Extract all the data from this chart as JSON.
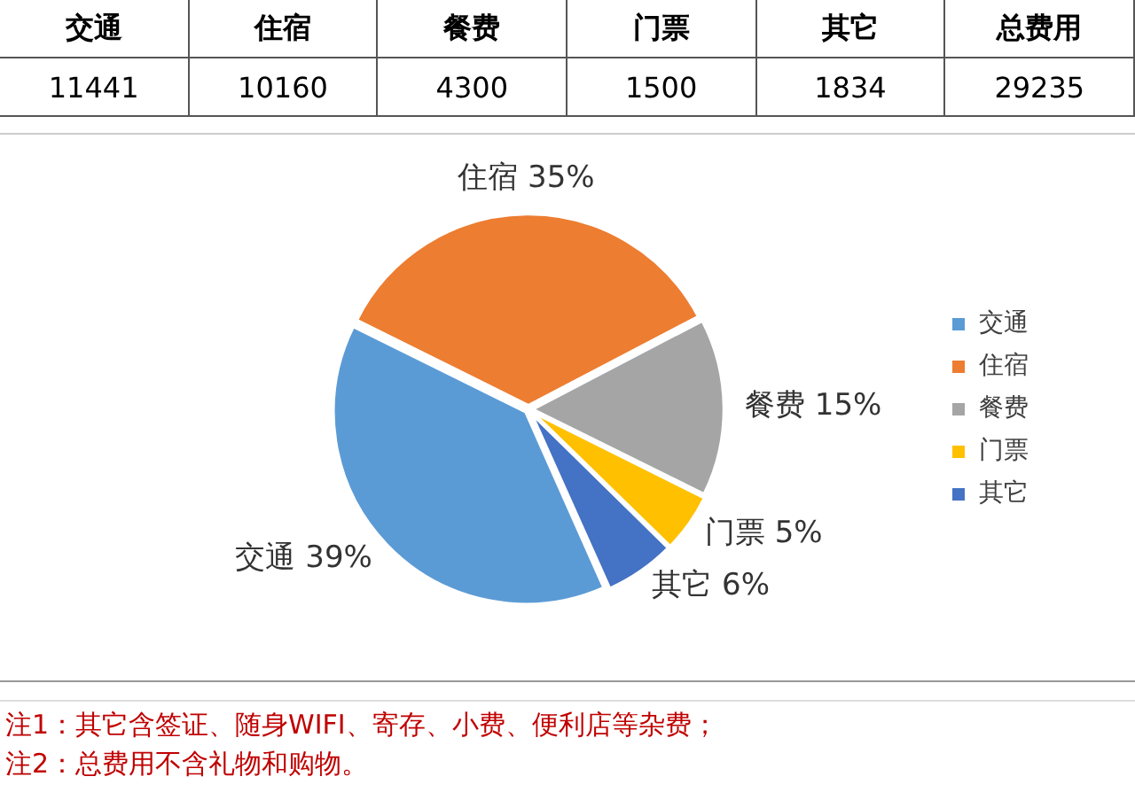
{
  "chart_data": [
    {
      "type": "other",
      "categories": [
        "交通",
        "住宿",
        "餐费",
        "门票",
        "其它",
        "总费用"
      ],
      "values": [
        11441,
        10160,
        4300,
        1500,
        1834,
        29235
      ],
      "data_labels": true
    },
    {
      "type": "pie",
      "categories": [
        "交通",
        "住宿",
        "餐费",
        "门票",
        "其它"
      ],
      "values": [
        39,
        35,
        15,
        5,
        6
      ],
      "colors": [
        "#5b9bd5",
        "#ed7d31",
        "#a5a5a5",
        "#ffc000",
        "#4472c4"
      ],
      "value_labels": [
        "交通 39%",
        "住宿 35%",
        "餐费 15%",
        "门票 5%",
        "其它 6%"
      ],
      "annotations": [
        "注1：其它含签证、随身WIFI、寄存、小费、便利店等杂费；",
        "注2：总费用不含礼物和购物。"
      ],
      "legend": "right"
    }
  ]
}
